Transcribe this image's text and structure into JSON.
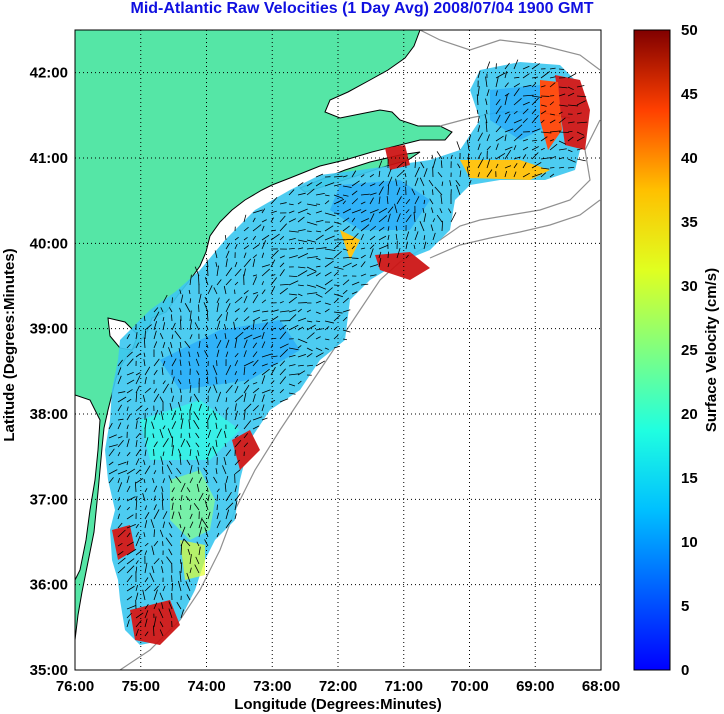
{
  "title": "Mid-Atlantic Raw Velocities (1 Day Avg) 2008/07/04 1900 GMT",
  "axes": {
    "xlabel": "Longitude (Degrees:Minutes)",
    "ylabel": "Latitude (Degrees:Minutes)",
    "xticks": [
      "76:00",
      "75:00",
      "74:00",
      "73:00",
      "72:00",
      "71:00",
      "70:00",
      "69:00",
      "68:00"
    ],
    "yticks": [
      "35:00",
      "36:00",
      "37:00",
      "38:00",
      "39:00",
      "40:00",
      "41:00",
      "42:00"
    ],
    "xlim": [
      -76,
      -68
    ],
    "ylim": [
      35,
      42.5
    ],
    "grid": "dotted"
  },
  "colorbar": {
    "label": "Surface Velocity (cm/s)",
    "ticks": [
      "0",
      "5",
      "10",
      "15",
      "20",
      "25",
      "30",
      "35",
      "40",
      "45",
      "50"
    ],
    "range": [
      0,
      50
    ],
    "colormap": "jet"
  },
  "colors": {
    "land": "#55e6a6",
    "title": "#1010e0",
    "coast": "#000000",
    "bathymetry": "#909090",
    "vectors": "#000000"
  }
}
